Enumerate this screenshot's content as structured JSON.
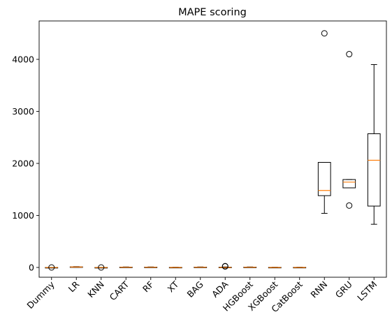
{
  "chart_data": {
    "type": "box",
    "title": "MAPE scoring",
    "ylim": [
      -200,
      4700
    ],
    "yticks": [
      0,
      1000,
      2000,
      3000,
      4000
    ],
    "grid": false,
    "colors": {
      "median": "#ff7f0e",
      "box": "#000000"
    },
    "categories": [
      "Dummy",
      "LR",
      "KNN",
      "CART",
      "RF",
      "XT",
      "BAG",
      "ADA",
      "HGBoost",
      "XGBoost",
      "CatBoost",
      "RNN",
      "GRU",
      "LSTM"
    ],
    "boxes": [
      {
        "label": "Dummy",
        "whislo": 0,
        "q1": 0,
        "med": 0,
        "q3": 0,
        "whishi": 0,
        "fliers": [
          0
        ]
      },
      {
        "label": "LR",
        "whislo": 3,
        "q1": 5,
        "med": 8,
        "q3": 12,
        "whishi": 16,
        "fliers": []
      },
      {
        "label": "KNN",
        "whislo": 0,
        "q1": 0,
        "med": 0,
        "q3": 0,
        "whishi": 0,
        "fliers": [
          0
        ]
      },
      {
        "label": "CART",
        "whislo": 0,
        "q1": 2,
        "med": 4,
        "q3": 7,
        "whishi": 10,
        "fliers": []
      },
      {
        "label": "RF",
        "whislo": 0,
        "q1": 2,
        "med": 4,
        "q3": 7,
        "whishi": 10,
        "fliers": []
      },
      {
        "label": "XT",
        "whislo": -3,
        "q1": -1,
        "med": 0,
        "q3": 2,
        "whishi": 4,
        "fliers": []
      },
      {
        "label": "BAG",
        "whislo": 0,
        "q1": 2,
        "med": 4,
        "q3": 7,
        "whishi": 10,
        "fliers": []
      },
      {
        "label": "ADA",
        "whislo": -5,
        "q1": -2,
        "med": 0,
        "q3": 5,
        "whishi": 10,
        "fliers": [
          20,
          25
        ]
      },
      {
        "label": "HGBoost",
        "whislo": 0,
        "q1": 2,
        "med": 4,
        "q3": 7,
        "whishi": 10,
        "fliers": []
      },
      {
        "label": "XGBoost",
        "whislo": -3,
        "q1": -1,
        "med": 0,
        "q3": 2,
        "whishi": 4,
        "fliers": []
      },
      {
        "label": "CatBoost",
        "whislo": -3,
        "q1": -1,
        "med": 0,
        "q3": 2,
        "whishi": 4,
        "fliers": []
      },
      {
        "label": "RNN",
        "whislo": 1040,
        "q1": 1380,
        "med": 1480,
        "q3": 2020,
        "whishi": 2020,
        "fliers": [
          4500
        ]
      },
      {
        "label": "GRU",
        "whislo": 1530,
        "q1": 1530,
        "med": 1640,
        "q3": 1690,
        "whishi": 1690,
        "fliers": [
          1190,
          4100
        ]
      },
      {
        "label": "LSTM",
        "whislo": 830,
        "q1": 1180,
        "med": 2060,
        "q3": 2570,
        "whishi": 3900,
        "fliers": []
      }
    ]
  }
}
